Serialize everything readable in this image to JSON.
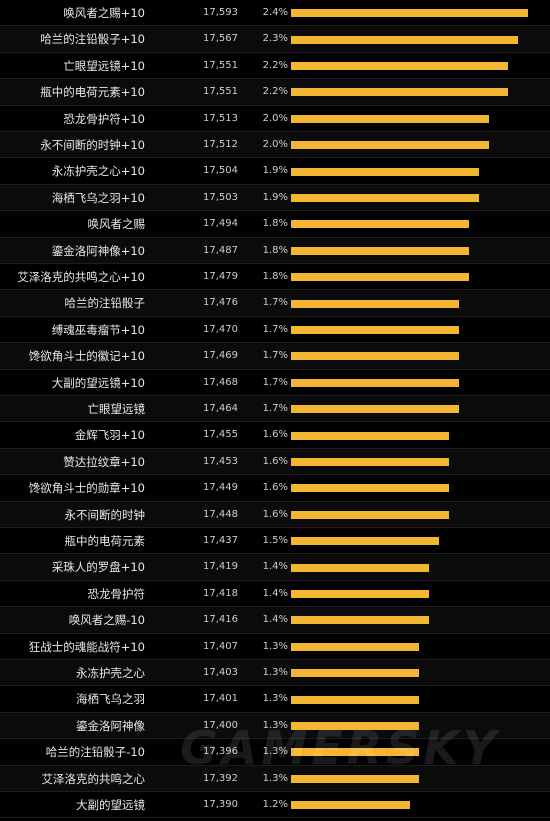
{
  "colors": {
    "bar": "#f3b632",
    "background": "#000000",
    "text": "#e8e8e8"
  },
  "watermark": "GAMERSKY",
  "chart_data": {
    "type": "bar",
    "orientation": "horizontal",
    "xlim": [
      0,
      2.4
    ],
    "rows": [
      {
        "name": "唤风者之赐+10",
        "dps": "17,593",
        "pct_label": "2.4%",
        "pct": 2.4
      },
      {
        "name": "哈兰的注铅骰子+10",
        "dps": "17,567",
        "pct_label": "2.3%",
        "pct": 2.3
      },
      {
        "name": "亡眼望远镜+10",
        "dps": "17,551",
        "pct_label": "2.2%",
        "pct": 2.2
      },
      {
        "name": "瓶中的电荷元素+10",
        "dps": "17,551",
        "pct_label": "2.2%",
        "pct": 2.2
      },
      {
        "name": "恐龙骨护符+10",
        "dps": "17,513",
        "pct_label": "2.0%",
        "pct": 2.0
      },
      {
        "name": "永不间断的时钟+10",
        "dps": "17,512",
        "pct_label": "2.0%",
        "pct": 2.0
      },
      {
        "name": "永冻护壳之心+10",
        "dps": "17,504",
        "pct_label": "1.9%",
        "pct": 1.9
      },
      {
        "name": "海栖飞乌之羽+10",
        "dps": "17,503",
        "pct_label": "1.9%",
        "pct": 1.9
      },
      {
        "name": "唤风者之赐",
        "dps": "17,494",
        "pct_label": "1.8%",
        "pct": 1.8
      },
      {
        "name": "鎏金洛阿神像+10",
        "dps": "17,487",
        "pct_label": "1.8%",
        "pct": 1.8
      },
      {
        "name": "艾泽洛克的共鸣之心+10",
        "dps": "17,479",
        "pct_label": "1.8%",
        "pct": 1.8
      },
      {
        "name": "哈兰的注铅骰子",
        "dps": "17,476",
        "pct_label": "1.7%",
        "pct": 1.7
      },
      {
        "name": "缚魂巫毒瘤节+10",
        "dps": "17,470",
        "pct_label": "1.7%",
        "pct": 1.7
      },
      {
        "name": "馋欲角斗士的徽记+10",
        "dps": "17,469",
        "pct_label": "1.7%",
        "pct": 1.7
      },
      {
        "name": "大副的望远镜+10",
        "dps": "17,468",
        "pct_label": "1.7%",
        "pct": 1.7
      },
      {
        "name": "亡眼望远镜",
        "dps": "17,464",
        "pct_label": "1.7%",
        "pct": 1.7
      },
      {
        "name": "金辉飞羽+10",
        "dps": "17,455",
        "pct_label": "1.6%",
        "pct": 1.6
      },
      {
        "name": "赞达拉纹章+10",
        "dps": "17,453",
        "pct_label": "1.6%",
        "pct": 1.6
      },
      {
        "name": "馋欲角斗士的勋章+10",
        "dps": "17,449",
        "pct_label": "1.6%",
        "pct": 1.6
      },
      {
        "name": "永不间断的时钟",
        "dps": "17,448",
        "pct_label": "1.6%",
        "pct": 1.6
      },
      {
        "name": "瓶中的电荷元素",
        "dps": "17,437",
        "pct_label": "1.5%",
        "pct": 1.5
      },
      {
        "name": "采珠人的罗盘+10",
        "dps": "17,419",
        "pct_label": "1.4%",
        "pct": 1.4
      },
      {
        "name": "恐龙骨护符",
        "dps": "17,418",
        "pct_label": "1.4%",
        "pct": 1.4
      },
      {
        "name": "唤风者之赐-10",
        "dps": "17,416",
        "pct_label": "1.4%",
        "pct": 1.4
      },
      {
        "name": "狂战士的魂能战符+10",
        "dps": "17,407",
        "pct_label": "1.3%",
        "pct": 1.3
      },
      {
        "name": "永冻护壳之心",
        "dps": "17,403",
        "pct_label": "1.3%",
        "pct": 1.3
      },
      {
        "name": "海栖飞乌之羽",
        "dps": "17,401",
        "pct_label": "1.3%",
        "pct": 1.3
      },
      {
        "name": "鎏金洛阿神像",
        "dps": "17,400",
        "pct_label": "1.3%",
        "pct": 1.3
      },
      {
        "name": "哈兰的注铅骰子-10",
        "dps": "17,396",
        "pct_label": "1.3%",
        "pct": 1.3
      },
      {
        "name": "艾泽洛克的共鸣之心",
        "dps": "17,392",
        "pct_label": "1.3%",
        "pct": 1.3
      },
      {
        "name": "大副的望远镜",
        "dps": "17,390",
        "pct_label": "1.2%",
        "pct": 1.2
      }
    ]
  }
}
